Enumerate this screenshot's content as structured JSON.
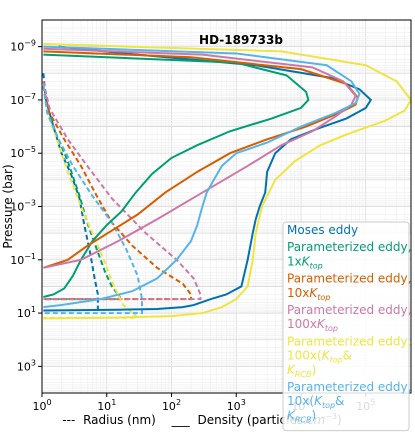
{
  "chart_data": {
    "type": "line",
    "title": "HD-189733b",
    "xlabel_parts": {
      "dash_marker": "---",
      "radius_label": "Radius (nm)",
      "solid_marker": "___",
      "density_label": "Density (particles.",
      "density_unit_base": "cm",
      "density_unit_exp": "−3",
      "density_close": ")"
    },
    "ylabel": "Pressure (bar)",
    "xscale": "log",
    "yscale": "log",
    "yinverted": true,
    "xlim": [
      1,
      500000
    ],
    "ylim": [
      1e-10,
      10000
    ],
    "grid": true,
    "x_ticks": [
      {
        "value": 1,
        "base": "10",
        "exp": "0"
      },
      {
        "value": 10,
        "base": "10",
        "exp": "1"
      },
      {
        "value": 100,
        "base": "10",
        "exp": "2"
      },
      {
        "value": 1000,
        "base": "10",
        "exp": "3"
      },
      {
        "value": 10000,
        "base": "10",
        "exp": "4"
      },
      {
        "value": 100000,
        "base": "10",
        "exp": "5"
      }
    ],
    "y_ticks": [
      {
        "value": 1e-09,
        "base": "10",
        "exp": "−9"
      },
      {
        "value": 1e-07,
        "base": "10",
        "exp": "−7"
      },
      {
        "value": 1e-05,
        "base": "10",
        "exp": "−5"
      },
      {
        "value": 0.001,
        "base": "10",
        "exp": "−3"
      },
      {
        "value": 0.1,
        "base": "10",
        "exp": "−1"
      },
      {
        "value": 10,
        "base": "10",
        "exp": "1"
      },
      {
        "value": 1000,
        "base": "10",
        "exp": "3"
      }
    ],
    "legend_position": "lower-right",
    "series": [
      {
        "legend_lines": [
          [
            "Moses eddy"
          ]
        ],
        "color": "#0072b2",
        "density": [
          [
            1.8,
            1e-09
          ],
          [
            30,
            2e-09
          ],
          [
            2000,
            5e-09
          ],
          [
            30000,
            1.5e-08
          ],
          [
            80000,
            4e-08
          ],
          [
            120000,
            1e-07
          ],
          [
            100000,
            2e-07
          ],
          [
            50000,
            5e-07
          ],
          [
            18000,
            1.2e-06
          ],
          [
            7000,
            3e-06
          ],
          [
            4000,
            1e-05
          ],
          [
            3000,
            5e-05
          ],
          [
            2800,
            0.0003
          ],
          [
            2300,
            0.001
          ],
          [
            2000,
            0.003
          ],
          [
            1800,
            0.01
          ],
          [
            1500,
            0.1
          ],
          [
            1200,
            1
          ],
          [
            700,
            2
          ],
          [
            400,
            3
          ],
          [
            220,
            5
          ],
          [
            150,
            6
          ],
          [
            60,
            7
          ],
          [
            15,
            7.5
          ],
          [
            1.05,
            8
          ]
        ],
        "radius": [
          [
            1.05,
            1e-08
          ],
          [
            1.15,
            1e-07
          ],
          [
            1.5,
            1e-06
          ],
          [
            2,
            1e-05
          ],
          [
            2.8,
            6e-05
          ],
          [
            3.8,
            0.0005
          ],
          [
            4.5,
            0.005
          ],
          [
            5.5,
            0.05
          ],
          [
            6.5,
            0.5
          ],
          [
            7.3,
            2
          ],
          [
            7.3,
            4
          ],
          [
            7.3,
            8
          ]
        ]
      },
      {
        "legend_lines": [
          [
            "Parameterized eddy,"
          ],
          [
            "1x",
            "K",
            "top",
            ""
          ]
        ],
        "color": "#009e73",
        "density": [
          [
            1.05,
            2e-09
          ],
          [
            1000,
            4e-09
          ],
          [
            6000,
            1.2e-08
          ],
          [
            12000,
            5e-08
          ],
          [
            13000,
            1e-07
          ],
          [
            10000,
            2e-07
          ],
          [
            3500,
            5e-07
          ],
          [
            800,
            1.5e-06
          ],
          [
            250,
            5e-06
          ],
          [
            100,
            1.5e-05
          ],
          [
            50,
            6e-05
          ],
          [
            28,
            0.0003
          ],
          [
            17,
            0.0015
          ],
          [
            10,
            0.005
          ],
          [
            6,
            0.02
          ],
          [
            4,
            0.1
          ],
          [
            3,
            0.4
          ],
          [
            2.2,
            1.2
          ],
          [
            1.5,
            2
          ],
          [
            1.05,
            2.5
          ]
        ],
        "radius": [
          [
            1.05,
            3e-08
          ],
          [
            1.2,
            2e-07
          ],
          [
            1.6,
            1.5e-06
          ],
          [
            2.5,
            2e-05
          ],
          [
            3.8,
            0.0004
          ],
          [
            5,
            0.004
          ],
          [
            7,
            0.04
          ],
          [
            9.5,
            0.3
          ],
          [
            12,
            1
          ],
          [
            16,
            2.5
          ],
          [
            16,
            3
          ],
          [
            1.05,
            3
          ]
        ]
      },
      {
        "legend_lines": [
          [
            "Parameterized eddy,"
          ],
          [
            "10x",
            "K",
            "top",
            ""
          ]
        ],
        "color": "#d55e00",
        "density": [
          [
            1.05,
            1.5e-09
          ],
          [
            200,
            2.5e-09
          ],
          [
            10000,
            7e-09
          ],
          [
            50000,
            2.5e-08
          ],
          [
            75000,
            8e-08
          ],
          [
            70000,
            1.5e-07
          ],
          [
            40000,
            3e-07
          ],
          [
            12000,
            1e-06
          ],
          [
            3000,
            3e-06
          ],
          [
            800,
            1e-05
          ],
          [
            250,
            5e-05
          ],
          [
            80,
            0.0003
          ],
          [
            30,
            0.002
          ],
          [
            12,
            0.008
          ],
          [
            5,
            0.03
          ],
          [
            2.5,
            0.1
          ],
          [
            1.05,
            0.2
          ]
        ],
        "radius": [
          [
            1.05,
            3e-08
          ],
          [
            1.3,
            3e-07
          ],
          [
            2.2,
            3e-06
          ],
          [
            4,
            3e-05
          ],
          [
            7,
            0.0004
          ],
          [
            12,
            0.004
          ],
          [
            25,
            0.03
          ],
          [
            60,
            0.2
          ],
          [
            150,
            0.8
          ],
          [
            200,
            2
          ],
          [
            200,
            3
          ],
          [
            1.05,
            3
          ]
        ]
      },
      {
        "legend_lines": [
          [
            "Parameterized eddy,"
          ],
          [
            "100x",
            "K",
            "top",
            ""
          ]
        ],
        "color": "#cc79a7",
        "density": [
          [
            1.05,
            1.2e-09
          ],
          [
            300,
            2e-09
          ],
          [
            15000,
            6e-09
          ],
          [
            45000,
            2e-08
          ],
          [
            70000,
            7e-08
          ],
          [
            60000,
            1.5e-07
          ],
          [
            35000,
            4e-07
          ],
          [
            15000,
            1.5e-06
          ],
          [
            5000,
            5e-06
          ],
          [
            1500,
            3e-05
          ],
          [
            300,
            0.0003
          ],
          [
            60,
            0.003
          ],
          [
            15,
            0.02
          ],
          [
            4,
            0.1
          ],
          [
            1.05,
            0.2
          ]
        ],
        "radius": [
          [
            1.05,
            2e-08
          ],
          [
            1.3,
            2e-07
          ],
          [
            2.5,
            3e-06
          ],
          [
            5,
            3e-05
          ],
          [
            12,
            0.0005
          ],
          [
            40,
            0.01
          ],
          [
            120,
            0.1
          ],
          [
            220,
            0.5
          ],
          [
            280,
            2
          ],
          [
            280,
            3
          ],
          [
            1.05,
            3
          ]
        ]
      },
      {
        "legend_lines": [
          [
            "Parameterized eddy,"
          ],
          [
            "100x(",
            "K",
            "top",
            "&"
          ],
          [
            "",
            "K",
            "RCB",
            ")"
          ]
        ],
        "color": "#f0e442",
        "density": [
          [
            1.05,
            8e-10
          ],
          [
            5000,
            1.5e-09
          ],
          [
            100000,
            5e-09
          ],
          [
            300000,
            2e-08
          ],
          [
            500000,
            1e-07
          ],
          [
            400000,
            2.5e-07
          ],
          [
            200000,
            6e-07
          ],
          [
            50000,
            2e-06
          ],
          [
            20000,
            5e-06
          ],
          [
            8000,
            2e-05
          ],
          [
            4000,
            0.0001
          ],
          [
            2500,
            0.001
          ],
          [
            2000,
            0.01
          ],
          [
            1800,
            0.1
          ],
          [
            1500,
            1
          ],
          [
            1000,
            3
          ],
          [
            600,
            6
          ],
          [
            300,
            10
          ],
          [
            100,
            13
          ],
          [
            10,
            15
          ],
          [
            1.05,
            16
          ]
        ],
        "radius": [
          [
            1.05,
            3e-08
          ],
          [
            1.2,
            3e-07
          ],
          [
            1.7,
            3e-06
          ],
          [
            2.5,
            5e-05
          ],
          [
            4,
            0.001
          ],
          [
            6,
            0.01
          ],
          [
            9,
            0.1
          ],
          [
            13,
            1
          ],
          [
            18,
            5
          ],
          [
            25,
            10
          ],
          [
            30,
            15
          ],
          [
            1.05,
            15
          ]
        ]
      },
      {
        "legend_lines": [
          [
            "Parameterized eddy,"
          ],
          [
            "10x(",
            "K",
            "top",
            "&"
          ],
          [
            "",
            "K",
            "RCB",
            ")"
          ]
        ],
        "color": "#56b4e9",
        "density": [
          [
            1.05,
            1e-09
          ],
          [
            1000,
            1.8e-09
          ],
          [
            25000,
            5e-09
          ],
          [
            60000,
            2e-08
          ],
          [
            80000,
            6e-08
          ],
          [
            70000,
            1.3e-07
          ],
          [
            35000,
            3e-07
          ],
          [
            10000,
            1e-06
          ],
          [
            3000,
            4e-06
          ],
          [
            1000,
            1e-05
          ],
          [
            600,
            3e-05
          ],
          [
            450,
            0.0001
          ],
          [
            350,
            0.0003
          ],
          [
            300,
            0.001
          ],
          [
            250,
            0.005
          ],
          [
            200,
            0.02
          ],
          [
            120,
            0.1
          ],
          [
            60,
            0.5
          ],
          [
            25,
            1.5
          ],
          [
            8,
            3
          ],
          [
            2,
            5
          ],
          [
            1.05,
            6
          ]
        ],
        "radius": [
          [
            1.05,
            3e-08
          ],
          [
            1.2,
            3e-07
          ],
          [
            1.8,
            3e-06
          ],
          [
            3,
            3e-05
          ],
          [
            6,
            0.0004
          ],
          [
            12,
            0.004
          ],
          [
            20,
            0.04
          ],
          [
            30,
            0.4
          ],
          [
            35,
            3
          ],
          [
            35,
            10
          ],
          [
            1.05,
            10
          ]
        ]
      }
    ]
  }
}
